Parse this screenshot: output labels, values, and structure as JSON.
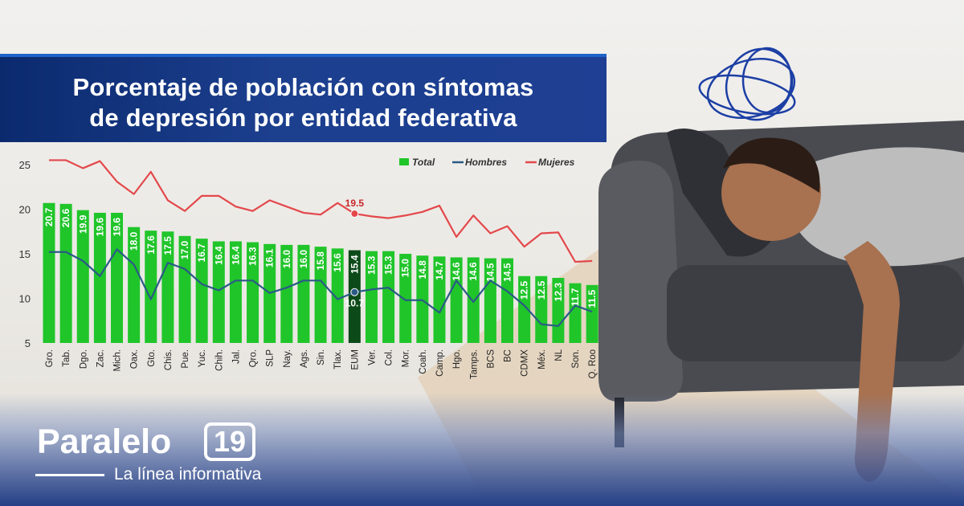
{
  "chart_data": {
    "type": "bar",
    "title": "Porcentaje de población con síntomas de depresión por entidad federativa",
    "title_lines": [
      "Porcentaje de población con síntomas",
      "de depresión por entidad federativa"
    ],
    "categories": [
      "Gro.",
      "Tab.",
      "Dgo.",
      "Zac.",
      "Mich.",
      "Oax.",
      "Gto.",
      "Chis.",
      "Pue.",
      "Yuc.",
      "Chih.",
      "Jal.",
      "Qro.",
      "SLP",
      "Nay.",
      "Ags.",
      "Sin.",
      "Tlax.",
      "EUM",
      "Ver.",
      "Col.",
      "Mor.",
      "Coah.",
      "Camp.",
      "Hgo.",
      "Tamps.",
      "BCS",
      "BC",
      "CDMX",
      "Méx.",
      "NL",
      "Son.",
      "Q. Roo"
    ],
    "ylim": [
      5,
      25
    ],
    "yticks": [
      5,
      10,
      15,
      20,
      25
    ],
    "grid": false,
    "legend_position": "top-right",
    "highlight_category": "EUM",
    "series": [
      {
        "name": "Total",
        "type": "bar",
        "color": "#20c52a",
        "values": [
          20.7,
          20.6,
          19.9,
          19.6,
          19.6,
          18.0,
          17.6,
          17.5,
          17.0,
          16.7,
          16.4,
          16.4,
          16.3,
          16.1,
          16.0,
          16.0,
          15.8,
          15.6,
          15.4,
          15.3,
          15.3,
          15.0,
          14.8,
          14.7,
          14.6,
          14.6,
          14.5,
          14.5,
          12.5,
          12.5,
          12.3,
          11.7,
          11.5
        ],
        "labels": [
          "20.7",
          "20.6",
          "19.9",
          "19.6",
          "19.6",
          "18.0",
          "17.6",
          "17.5",
          "17.0",
          "16.7",
          "16.4",
          "16.4",
          "16.3",
          "16.1",
          "16.0",
          "16.0",
          "15.8",
          "15.6",
          "15.4",
          "15.3",
          "15.3",
          "15.0",
          "14.8",
          "14.7",
          "14.6",
          "14.6",
          "14.5",
          "14.5",
          "12.5",
          "12.5",
          "12.3",
          "11.7",
          "11.5"
        ]
      },
      {
        "name": "Hombres",
        "type": "line",
        "color": "#2a5b86",
        "values": [
          15.2,
          15.2,
          14.2,
          12.5,
          15.5,
          13.8,
          9.9,
          14.0,
          13.3,
          11.6,
          10.9,
          12.0,
          12.0,
          10.6,
          11.2,
          12.0,
          12.0,
          9.9,
          10.7,
          11.0,
          11.2,
          9.8,
          9.8,
          8.4,
          12.0,
          9.6,
          12.0,
          10.8,
          9.2,
          7.1,
          6.9,
          9.2,
          8.5
        ],
        "point_label": {
          "category": "EUM",
          "text": "10.7"
        }
      },
      {
        "name": "Mujeres",
        "type": "line",
        "color": "#e3484b",
        "values": [
          25.5,
          25.5,
          24.6,
          25.4,
          23.1,
          21.7,
          24.2,
          21.0,
          19.8,
          21.5,
          21.5,
          20.3,
          19.8,
          21.0,
          20.3,
          19.6,
          19.4,
          20.7,
          19.5,
          19.2,
          19.0,
          19.3,
          19.7,
          20.4,
          16.9,
          19.3,
          17.3,
          18.1,
          15.8,
          17.3,
          17.4,
          14.1,
          14.2
        ],
        "point_label": {
          "category": "EUM",
          "text": "19.5"
        }
      }
    ]
  },
  "brand": {
    "name": "Paralelo",
    "number": "19",
    "tagline": "La línea informativa"
  }
}
